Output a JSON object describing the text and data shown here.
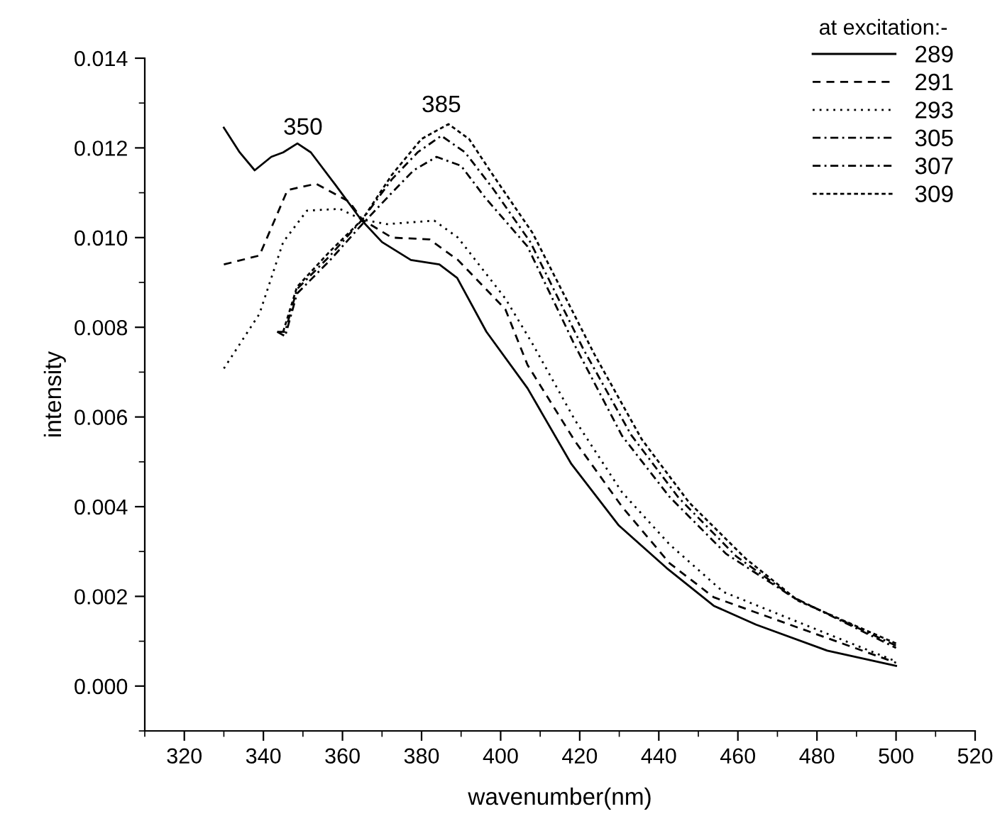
{
  "chart_data": {
    "type": "line",
    "xlabel": "wavenumber(nm)",
    "ylabel": "intensity",
    "legend_title": "at excitation:-",
    "legend": "top right",
    "grid": false,
    "marker": "none",
    "xlim": [
      310,
      520
    ],
    "xticks": [
      320,
      340,
      360,
      380,
      400,
      420,
      440,
      460,
      480,
      500,
      520
    ],
    "ylim": [
      -0.001,
      0.014
    ],
    "yticks": [
      {
        "value": 0,
        "label": "0.000"
      },
      {
        "value": 0.002,
        "label": "0.002"
      },
      {
        "value": 0.004,
        "label": "0.004"
      },
      {
        "value": 0.006,
        "label": "0.006"
      },
      {
        "value": 0.008,
        "label": "0.008"
      },
      {
        "value": 0.01,
        "label": "0.010"
      },
      {
        "value": 0.012,
        "label": "0.012"
      },
      {
        "value": 0.014,
        "label": "0.014"
      }
    ],
    "annotations": [
      {
        "text": "350",
        "x": 350,
        "y": 0.0121
      },
      {
        "text": "385",
        "x": 385,
        "y": 0.0126
      }
    ],
    "series": [
      {
        "name": "289",
        "color": "#000000",
        "line_style": "solid",
        "x": [
          330,
          334,
          337.8,
          342,
          345,
          348.6,
          352,
          358,
          364.7,
          370,
          377.3,
          384.5,
          389,
          396.4,
          406.8,
          417.9,
          429.9,
          442,
          453.9,
          464.6,
          482.6,
          500
        ],
        "values": [
          0.01245,
          0.0119,
          0.0115,
          0.0118,
          0.0119,
          0.0121,
          0.0119,
          0.0112,
          0.0104,
          0.0099,
          0.0095,
          0.0094,
          0.0091,
          0.0079,
          0.00664,
          0.00495,
          0.00358,
          0.00263,
          0.00179,
          0.00137,
          0.00079,
          0.00045
        ]
      },
      {
        "name": "291",
        "color": "#000000",
        "line_style": "dashed",
        "x": [
          330,
          339,
          346.1,
          353.3,
          361.7,
          365,
          372.5,
          382,
          389.2,
          401.2,
          406.8,
          418.8,
          430.7,
          442.7,
          453.9,
          476.6,
          500
        ],
        "values": [
          0.0094,
          0.0096,
          0.01106,
          0.0112,
          0.0108,
          0.0104,
          0.01,
          0.00996,
          0.0095,
          0.0084,
          0.00716,
          0.00546,
          0.004,
          0.00274,
          0.00198,
          0.00126,
          0.00052
        ]
      },
      {
        "name": "293",
        "color": "#000000",
        "line_style": "dotted",
        "x": [
          330,
          339,
          345,
          351,
          359.3,
          365,
          371.3,
          383.2,
          389.2,
          401.2,
          408,
          418.8,
          430.7,
          442.7,
          456.3,
          476,
          500
        ],
        "values": [
          0.00708,
          0.0083,
          0.0099,
          0.0106,
          0.01064,
          0.0104,
          0.0103,
          0.01038,
          0.01,
          0.00864,
          0.00764,
          0.00593,
          0.00432,
          0.00316,
          0.0021,
          0.0014,
          0.00055
        ]
      },
      {
        "name": "305",
        "color": "#000000",
        "line_style": "dashdot",
        "x": [
          343.5,
          345.5,
          348.5,
          356.9,
          365,
          372.5,
          378,
          383.8,
          390,
          396,
          406.8,
          418.8,
          430.7,
          442.7,
          457,
          473.6,
          500
        ],
        "values": [
          0.0079,
          0.0078,
          0.00875,
          0.0095,
          0.0103,
          0.011,
          0.0115,
          0.0118,
          0.0116,
          0.0109,
          0.0098,
          0.00759,
          0.00558,
          0.00422,
          0.00295,
          0.002,
          0.00085
        ]
      },
      {
        "name": "307",
        "color": "#000000",
        "line_style": "dashdot",
        "x": [
          343.5,
          345.5,
          348.5,
          356.9,
          365,
          372.5,
          379,
          385,
          391,
          398,
          407.5,
          421,
          433,
          445,
          459.5,
          474.5,
          500
        ],
        "values": [
          0.0079,
          0.0079,
          0.00885,
          0.0096,
          0.0104,
          0.0113,
          0.0119,
          0.01227,
          0.0119,
          0.0111,
          0.0099,
          0.0075,
          0.0056,
          0.0042,
          0.0029,
          0.00195,
          0.0009
        ]
      },
      {
        "name": "309",
        "color": "#000000",
        "line_style": "dashed",
        "x": [
          345,
          348.5,
          356.9,
          365,
          372.5,
          380,
          386.8,
          392,
          398,
          408.1,
          423.7,
          435.7,
          447.6,
          462,
          475.3,
          500
        ],
        "values": [
          0.0079,
          0.0089,
          0.0097,
          0.0104,
          0.0114,
          0.0122,
          0.01253,
          0.0122,
          0.0114,
          0.0101,
          0.0074,
          0.0055,
          0.0041,
          0.00284,
          0.0019,
          0.00095
        ]
      }
    ]
  }
}
